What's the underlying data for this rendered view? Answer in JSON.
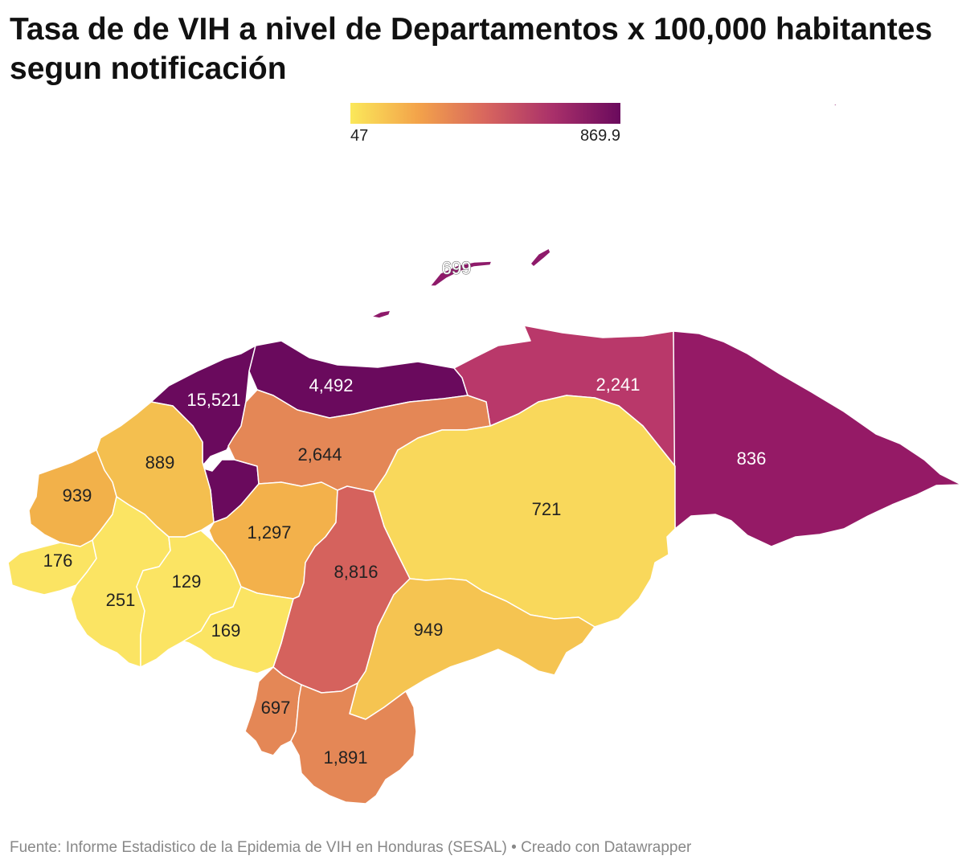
{
  "title": "Tasa de de VIH a nivel de Departamentos x 100,000 habitantes segun notificación",
  "legend": {
    "min_label": "47",
    "max_label": "869.9",
    "colors": [
      "#fbe85a",
      "#f3a34a",
      "#d8665e",
      "#a9306a",
      "#6a0a5d"
    ]
  },
  "source": "Fuente: Informe Estadistico de la Epidemia de VIH en Honduras (SESAL) • Creado con Datawrapper",
  "regions": [
    {
      "id": "islas",
      "label": "699",
      "color": "#8e1a6a"
    },
    {
      "id": "cortes",
      "label": "15,521",
      "color": "#6a0a5d"
    },
    {
      "id": "atlantida",
      "label": "4,492",
      "color": "#6a0a5d"
    },
    {
      "id": "colon",
      "label": "2,241",
      "color": "#b9386a"
    },
    {
      "id": "gracias-a-dios",
      "label": "836",
      "color": "#951a66"
    },
    {
      "id": "santa-barbara",
      "label": "889",
      "color": "#f4bf4f"
    },
    {
      "id": "copan",
      "label": "939",
      "color": "#f2b14a"
    },
    {
      "id": "yoro",
      "label": "2,644",
      "color": "#e48756"
    },
    {
      "id": "olancho",
      "label": "721",
      "color": "#f9d85b"
    },
    {
      "id": "ocotepeque",
      "label": "176",
      "color": "#fbe463"
    },
    {
      "id": "lempira",
      "label": "251",
      "color": "#fbe463"
    },
    {
      "id": "intibuca",
      "label": "129",
      "color": "#fbe463"
    },
    {
      "id": "comayagua",
      "label": "1,297",
      "color": "#f3b14b"
    },
    {
      "id": "francisco-morazan",
      "label": "8,816",
      "color": "#d5625d"
    },
    {
      "id": "la-paz",
      "label": "169",
      "color": "#fbe463"
    },
    {
      "id": "el-paraiso",
      "label": "949",
      "color": "#f5c451"
    },
    {
      "id": "valle",
      "label": "697",
      "color": "#e48756"
    },
    {
      "id": "choluteca",
      "label": "1,891",
      "color": "#e48756"
    }
  ]
}
